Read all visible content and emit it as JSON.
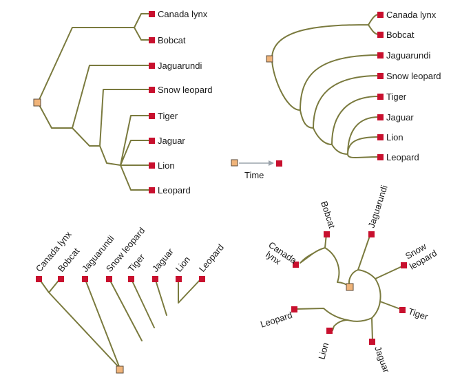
{
  "taxa": {
    "lynx": "Canada lynx",
    "bobcat": "Bobcat",
    "jaguarundi": "Jaguarundi",
    "snow": "Snow leopard",
    "tiger": "Tiger",
    "jaguar": "Jaguar",
    "lion": "Lion",
    "leopard": "Leopard"
  },
  "radial": {
    "canada": "Canada",
    "lynx": "lynx",
    "snow": "Snow",
    "leopard_word": "leopard"
  },
  "legend": {
    "time": "Time"
  },
  "colors": {
    "branch": "#7a7a3e",
    "tip": "#c8102e",
    "root": "#f0b47a",
    "arrow": "#9aa3ab"
  }
}
